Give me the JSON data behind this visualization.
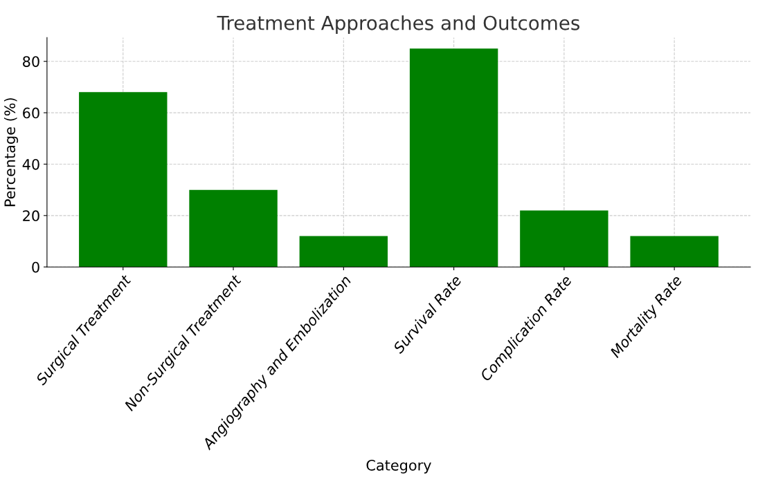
{
  "chart_data": {
    "type": "bar",
    "title": "Treatment Approaches and Outcomes",
    "xlabel": "Category",
    "ylabel": "Percentage (%)",
    "categories": [
      "Surgical Treatment",
      "Non-Surgical Treatment",
      "Angiography and Embolization",
      "Survival Rate",
      "Complication Rate",
      "Mortality Rate"
    ],
    "values": [
      68,
      30,
      12,
      85,
      22,
      12
    ],
    "color": "#008000",
    "ylim": [
      0,
      89.25
    ],
    "yticks": [
      0,
      20,
      40,
      60,
      80
    ],
    "grid": true,
    "line_style": "dashed"
  }
}
